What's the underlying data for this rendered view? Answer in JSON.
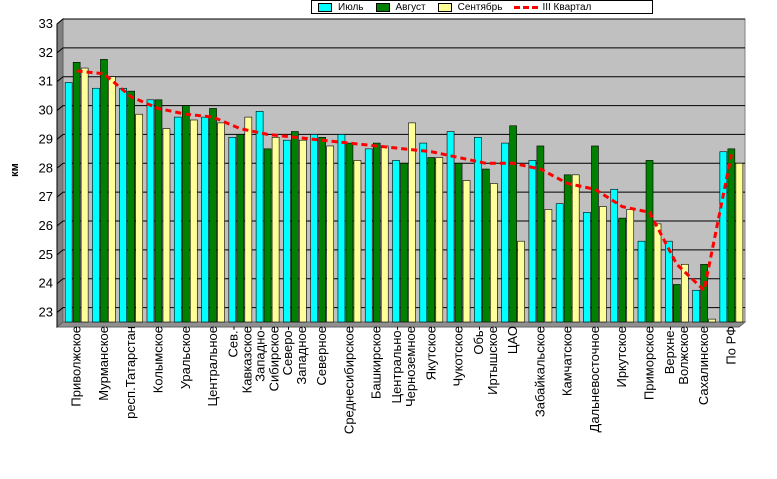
{
  "chart_data": {
    "type": "bar",
    "ylabel": "км",
    "ylim": [
      22.5,
      33
    ],
    "yticks": [
      23,
      24,
      25,
      26,
      27,
      28,
      29,
      30,
      31,
      32,
      33
    ],
    "grid": true,
    "legend_position": "top-right",
    "categories": [
      "Приволжское",
      "Мурманское",
      "респ.Татарстан",
      "Колымское",
      "Уральское",
      "Центральное",
      "Сев.-Кавказское",
      "Западно-Сибирское",
      "Северо-Западное",
      "Северное",
      "Среднесибирское",
      "Башкирское",
      "Центрально-Черноземное",
      "Якутское",
      "Чукотское",
      "Обь-Иртышское",
      "ЦАО",
      "Забайкальское",
      "Камчатское",
      "Дальневосточное",
      "Иркутское",
      "Приморское",
      "Верхне-Волжское",
      "Сахалинское",
      "По РФ"
    ],
    "category_labels": [
      [
        "Приволжское"
      ],
      [
        "Мурманское"
      ],
      [
        "респ.Татарстан"
      ],
      [
        "Колымское"
      ],
      [
        "Уральское"
      ],
      [
        "Центральное"
      ],
      [
        "Сев.-",
        "Кавказское"
      ],
      [
        "Западно-",
        "Сибирское"
      ],
      [
        "Северо-",
        "Западное"
      ],
      [
        "Северное"
      ],
      [
        "Среднесибирское"
      ],
      [
        "Башкирское"
      ],
      [
        "Центрально-",
        "Черноземное"
      ],
      [
        "Якутское"
      ],
      [
        "Чукотское"
      ],
      [
        "Обь-",
        "Иртышское"
      ],
      [
        "ЦАО"
      ],
      [
        "Забайкальское"
      ],
      [
        "Камчатское"
      ],
      [
        "Дальневосточное"
      ],
      [
        "Иркутское"
      ],
      [
        "Приморское"
      ],
      [
        "Верхне-",
        "Волжское"
      ],
      [
        "Сахалинское"
      ],
      [
        "По РФ"
      ]
    ],
    "series": [
      {
        "name": "Июль",
        "kind": "bar",
        "color": "#00ffff",
        "values": [
          30.8,
          30.6,
          30.6,
          30.2,
          29.6,
          29.6,
          28.9,
          29.8,
          28.8,
          29.0,
          29.0,
          28.5,
          28.1,
          28.7,
          29.1,
          28.9,
          28.7,
          28.1,
          26.6,
          26.3,
          27.1,
          25.3,
          25.3,
          23.6,
          28.4
        ]
      },
      {
        "name": "Август",
        "kind": "bar",
        "color": "#008000",
        "values": [
          31.5,
          31.6,
          30.5,
          30.2,
          30.0,
          29.9,
          29.0,
          28.5,
          29.1,
          28.9,
          28.7,
          28.7,
          28.0,
          28.2,
          28.0,
          27.8,
          29.3,
          28.6,
          27.6,
          28.6,
          26.1,
          28.1,
          23.8,
          24.5,
          28.5
        ]
      },
      {
        "name": "Сентябрь",
        "kind": "bar",
        "color": "#ffff99",
        "values": [
          31.3,
          31.0,
          29.7,
          29.2,
          29.5,
          29.4,
          29.6,
          28.9,
          28.8,
          28.6,
          28.1,
          28.6,
          29.4,
          28.2,
          27.4,
          27.3,
          25.3,
          26.4,
          27.6,
          26.5,
          26.4,
          25.9,
          24.5,
          22.6,
          28.0
        ]
      },
      {
        "name": "III Квартал",
        "kind": "line",
        "color": "#ff0000",
        "values": [
          31.2,
          31.1,
          30.3,
          29.9,
          29.7,
          29.6,
          29.2,
          29.0,
          28.9,
          28.8,
          28.7,
          28.6,
          28.5,
          28.4,
          28.2,
          28.0,
          28.0,
          27.8,
          27.3,
          27.1,
          26.5,
          26.3,
          24.5,
          23.6,
          28.3
        ]
      }
    ]
  }
}
